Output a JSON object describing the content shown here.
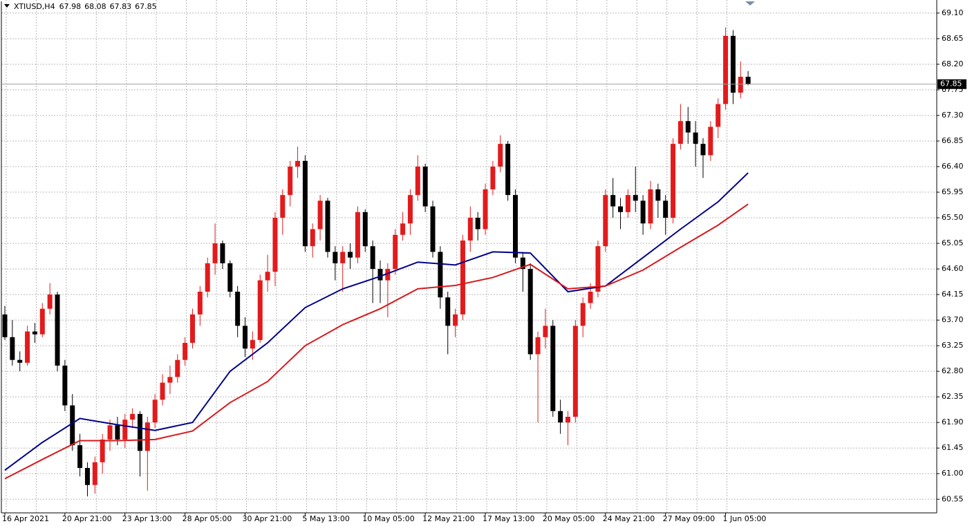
{
  "chart_data": {
    "type": "candlestick",
    "symbol": "XTIUSD,H4",
    "header_ohlc": [
      67.98,
      68.08,
      67.83,
      67.85
    ],
    "current_price": 67.85,
    "up_color": "#e31a1c",
    "down_color": "#000000",
    "grid": true,
    "ylim": [
      60.31,
      69.33
    ],
    "yticks": [
      60.55,
      {
        "value": 61.0,
        "label": "61.00"
      },
      61.45,
      {
        "value": 61.9,
        "label": "61.90"
      },
      62.35,
      {
        "value": 62.8,
        "label": "62.80"
      },
      63.25,
      {
        "value": 63.7,
        "label": "63.70"
      },
      64.15,
      {
        "value": 64.6,
        "label": "64.60"
      },
      65.05,
      {
        "value": 65.5,
        "label": "65.50"
      },
      65.95,
      {
        "value": 66.4,
        "label": "66.40"
      },
      66.85,
      {
        "value": 67.3,
        "label": "67.30"
      },
      67.75,
      {
        "value": 68.2,
        "label": "68.20"
      },
      68.65,
      {
        "value": 69.1,
        "label": "69.10"
      }
    ],
    "categories": [
      "16 Apr 2021",
      null,
      null,
      null,
      null,
      null,
      null,
      null,
      "20 Apr 21:00",
      null,
      null,
      null,
      null,
      null,
      null,
      null,
      "23 Apr 13:00",
      null,
      null,
      null,
      null,
      null,
      null,
      null,
      "28 Apr 05:00",
      null,
      null,
      null,
      null,
      null,
      null,
      null,
      "30 Apr 21:00",
      null,
      null,
      null,
      null,
      null,
      null,
      null,
      "5 May 13:00",
      null,
      null,
      null,
      null,
      null,
      null,
      null,
      "10 May 05:00",
      null,
      null,
      null,
      null,
      null,
      null,
      null,
      "12 May 21:00",
      null,
      null,
      null,
      null,
      null,
      null,
      null,
      "17 May 13:00",
      null,
      null,
      null,
      null,
      null,
      null,
      null,
      "20 May 05:00",
      null,
      null,
      null,
      null,
      null,
      null,
      null,
      "24 May 21:00",
      null,
      null,
      null,
      null,
      null,
      null,
      null,
      "27 May 09:00",
      null,
      null,
      null,
      null,
      null,
      null,
      null,
      "1 Jun 05:00",
      null,
      null,
      null
    ],
    "open": [
      63.8,
      63.4,
      63.0,
      62.95,
      63.5,
      63.45,
      63.9,
      64.15,
      62.9,
      62.2,
      61.5,
      61.1,
      60.8,
      61.2,
      61.6,
      61.85,
      61.6,
      61.95,
      62.05,
      61.4,
      61.9,
      62.3,
      62.6,
      62.7,
      63.0,
      63.3,
      63.8,
      64.2,
      64.7,
      65.05,
      64.7,
      64.2,
      63.6,
      63.2,
      63.35,
      64.4,
      64.55,
      65.5,
      65.9,
      66.4,
      66.5,
      65.0,
      65.3,
      65.8,
      64.9,
      64.7,
      64.9,
      64.8,
      65.6,
      65.0,
      64.6,
      64.4,
      64.6,
      65.2,
      65.4,
      65.9,
      66.4,
      65.7,
      64.9,
      64.1,
      63.6,
      63.8,
      65.1,
      65.5,
      65.3,
      66.0,
      66.4,
      66.8,
      65.9,
      64.8,
      64.6,
      63.1,
      63.4,
      63.6,
      62.1,
      61.9,
      62.0,
      63.6,
      64.0,
      64.2,
      65.0,
      65.9,
      65.7,
      65.6,
      65.9,
      65.8,
      65.4,
      66.0,
      65.8,
      65.5,
      66.8,
      67.2,
      67.0,
      66.8,
      66.6,
      67.1,
      67.5,
      68.7,
      67.7,
      67.98
    ],
    "high": [
      63.95,
      63.7,
      63.15,
      63.6,
      63.65,
      64.0,
      64.35,
      64.2,
      63.0,
      62.4,
      61.7,
      61.2,
      61.3,
      61.7,
      61.95,
      62.0,
      62.05,
      62.15,
      62.1,
      62.0,
      62.4,
      62.75,
      62.9,
      63.1,
      63.4,
      63.9,
      64.3,
      64.8,
      65.4,
      65.1,
      64.75,
      64.3,
      63.75,
      63.5,
      64.5,
      64.85,
      65.6,
      66.0,
      66.5,
      66.75,
      66.6,
      65.4,
      65.9,
      65.85,
      65.0,
      65.0,
      65.05,
      65.7,
      65.65,
      65.1,
      64.75,
      64.7,
      65.3,
      65.6,
      66.0,
      66.6,
      66.45,
      65.8,
      65.0,
      64.2,
      63.9,
      65.2,
      65.7,
      65.6,
      66.1,
      66.5,
      66.95,
      66.85,
      66.0,
      64.9,
      64.7,
      63.5,
      63.9,
      63.7,
      62.3,
      62.1,
      63.7,
      64.1,
      64.35,
      65.1,
      66.0,
      66.2,
      65.85,
      66.0,
      66.4,
      65.9,
      66.15,
      66.1,
      65.9,
      66.9,
      67.5,
      67.45,
      67.2,
      66.9,
      67.2,
      67.6,
      68.85,
      68.8,
      68.25,
      68.08
    ],
    "low": [
      63.35,
      62.9,
      62.8,
      62.9,
      63.3,
      63.4,
      63.8,
      62.8,
      62.1,
      61.4,
      60.95,
      60.6,
      60.65,
      61.0,
      61.4,
      61.5,
      61.45,
      61.8,
      60.95,
      60.7,
      61.8,
      62.2,
      62.4,
      62.6,
      62.9,
      63.2,
      63.6,
      64.1,
      64.5,
      64.6,
      64.1,
      63.4,
      63.05,
      63.0,
      63.3,
      64.2,
      64.3,
      65.2,
      65.7,
      66.2,
      64.9,
      64.8,
      65.1,
      64.8,
      64.4,
      64.2,
      64.6,
      64.7,
      64.9,
      64.0,
      64.0,
      63.75,
      64.5,
      65.1,
      65.2,
      65.8,
      65.6,
      64.8,
      63.9,
      63.1,
      63.4,
      63.7,
      64.9,
      65.1,
      65.2,
      65.9,
      66.3,
      65.8,
      64.7,
      64.2,
      63.0,
      61.9,
      63.2,
      62.0,
      61.7,
      61.5,
      61.9,
      63.4,
      63.9,
      64.1,
      64.9,
      65.5,
      65.3,
      65.5,
      65.6,
      65.2,
      65.3,
      65.5,
      65.2,
      65.4,
      66.7,
      66.8,
      66.4,
      66.2,
      66.5,
      66.9,
      67.4,
      67.5,
      67.6,
      67.83
    ],
    "close": [
      63.4,
      63.0,
      62.95,
      63.5,
      63.45,
      63.9,
      64.15,
      62.9,
      62.2,
      61.5,
      61.1,
      60.8,
      61.2,
      61.6,
      61.85,
      61.6,
      61.95,
      62.05,
      61.4,
      61.9,
      62.3,
      62.6,
      62.7,
      63.0,
      63.3,
      63.8,
      64.2,
      64.7,
      65.05,
      64.7,
      64.2,
      63.6,
      63.2,
      63.35,
      64.4,
      64.55,
      65.5,
      65.9,
      66.4,
      66.5,
      65.0,
      65.3,
      65.8,
      64.9,
      64.7,
      64.9,
      64.8,
      65.6,
      65.0,
      64.6,
      64.4,
      64.6,
      65.2,
      65.4,
      65.9,
      66.4,
      65.7,
      64.9,
      64.1,
      63.6,
      63.8,
      65.1,
      65.5,
      65.3,
      66.0,
      66.4,
      66.8,
      65.9,
      64.8,
      64.6,
      63.1,
      63.4,
      63.6,
      62.1,
      61.9,
      62.0,
      63.6,
      64.0,
      64.2,
      65.0,
      65.9,
      65.7,
      65.6,
      65.9,
      65.8,
      65.4,
      66.0,
      65.8,
      65.5,
      66.8,
      67.2,
      67.0,
      66.8,
      66.6,
      67.1,
      67.5,
      68.7,
      67.7,
      67.98,
      67.85
    ],
    "lines": [
      {
        "color": "#00008b",
        "x": [
          0,
          5,
          10,
          15,
          20,
          25,
          30,
          35,
          40,
          45,
          50,
          55,
          60,
          65,
          70,
          75,
          80,
          85,
          90,
          95,
          99
        ],
        "values": [
          61.06,
          61.55,
          61.97,
          61.86,
          61.76,
          61.9,
          62.8,
          63.3,
          63.92,
          64.25,
          64.47,
          64.72,
          64.67,
          64.9,
          64.88,
          64.2,
          64.3,
          64.8,
          65.3,
          65.78,
          66.29
        ]
      },
      {
        "color": "#d7191c",
        "x": [
          0,
          5,
          10,
          15,
          20,
          25,
          30,
          35,
          40,
          45,
          50,
          55,
          60,
          65,
          70,
          75,
          80,
          85,
          90,
          95,
          99
        ],
        "values": [
          60.91,
          61.25,
          61.58,
          61.58,
          61.6,
          61.75,
          62.25,
          62.62,
          63.25,
          63.62,
          63.9,
          64.25,
          64.31,
          64.45,
          64.68,
          64.25,
          64.3,
          64.58,
          64.98,
          65.37,
          65.74
        ]
      }
    ]
  }
}
